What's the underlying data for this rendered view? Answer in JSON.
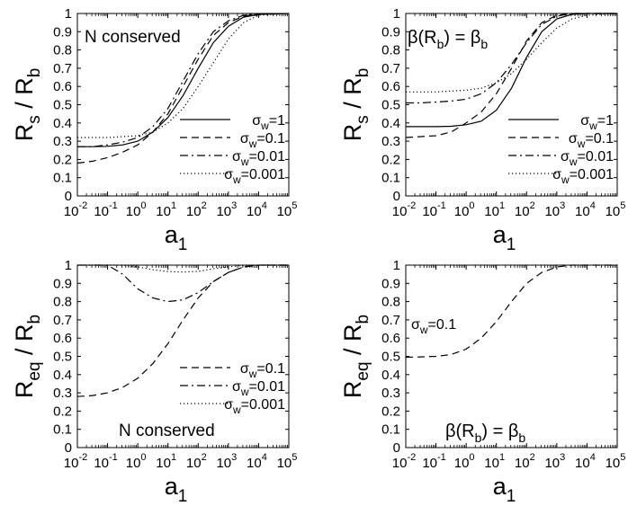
{
  "chart_data": [
    {
      "type": "line",
      "panel": "top-left",
      "title": "",
      "xlabel": "a",
      "xlabel_sub": "1",
      "ylabel": {
        "main": "R",
        "sub": "s",
        "rest": " / R",
        "sub2": "b"
      },
      "x_scale": "log10",
      "xlim_exp": [
        -2,
        5
      ],
      "ylim": [
        0,
        1
      ],
      "x_tick_labels": [
        "10",
        "10",
        "10",
        "10",
        "10",
        "10",
        "10",
        "10"
      ],
      "x_tick_exps": [
        "-2",
        "-1",
        "0",
        "1",
        "2",
        "3",
        "4",
        "5"
      ],
      "y_tick_labels": [
        "0",
        "0.1",
        "0.2",
        "0.3",
        "0.4",
        "0.5",
        "0.6",
        "0.7",
        "0.8",
        "0.9",
        "1"
      ],
      "annotation": {
        "text": "N conserved"
      },
      "legend": "bottom-right",
      "series": [
        {
          "name": "σw=1",
          "legend": {
            "sym": "σ",
            "sub": "w",
            "val": "=1"
          },
          "style": "solid",
          "x": [
            -2,
            -1.5,
            -1,
            -0.5,
            0,
            0.5,
            1,
            1.5,
            2,
            2.5,
            3,
            3.5,
            4,
            5
          ],
          "y": [
            0.27,
            0.27,
            0.272,
            0.28,
            0.3,
            0.35,
            0.43,
            0.55,
            0.7,
            0.84,
            0.93,
            0.98,
            0.995,
            1.0
          ]
        },
        {
          "name": "σw=0.1",
          "legend": {
            "sym": "σ",
            "sub": "w",
            "val": "=0.1"
          },
          "style": "dashed",
          "x": [
            -2,
            -1.5,
            -1,
            -0.5,
            0,
            0.5,
            1,
            1.5,
            2,
            2.5,
            3,
            3.5,
            4,
            5
          ],
          "y": [
            0.18,
            0.19,
            0.21,
            0.24,
            0.28,
            0.35,
            0.45,
            0.6,
            0.75,
            0.88,
            0.95,
            0.985,
            0.997,
            1.0
          ]
        },
        {
          "name": "σw=0.01",
          "legend": {
            "sym": "σ",
            "sub": "w",
            "val": "=0.01"
          },
          "style": "dashdot",
          "x": [
            -2,
            -1.5,
            -1,
            -0.5,
            0,
            0.5,
            1,
            1.5,
            2,
            2.5,
            3,
            3.5,
            4,
            5
          ],
          "y": [
            0.27,
            0.27,
            0.28,
            0.295,
            0.32,
            0.38,
            0.48,
            0.63,
            0.78,
            0.9,
            0.96,
            0.99,
            0.998,
            1.0
          ]
        },
        {
          "name": "σw=0.001",
          "legend": {
            "sym": "σ",
            "sub": "w",
            "val": "=0.001"
          },
          "style": "dotted",
          "x": [
            -2,
            -1.5,
            -1,
            -0.5,
            0,
            0.5,
            1,
            1.5,
            2,
            2.5,
            3,
            3.5,
            4,
            5
          ],
          "y": [
            0.32,
            0.32,
            0.32,
            0.325,
            0.33,
            0.35,
            0.4,
            0.48,
            0.6,
            0.73,
            0.86,
            0.95,
            0.99,
            1.0
          ]
        }
      ]
    },
    {
      "type": "line",
      "panel": "top-right",
      "title": "",
      "xlabel": "a",
      "xlabel_sub": "1",
      "ylabel": {
        "main": "R",
        "sub": "s",
        "rest": " / R",
        "sub2": "b"
      },
      "x_scale": "log10",
      "xlim_exp": [
        -2,
        5
      ],
      "ylim": [
        0,
        1
      ],
      "x_tick_labels": [
        "10",
        "10",
        "10",
        "10",
        "10",
        "10",
        "10",
        "10"
      ],
      "x_tick_exps": [
        "-2",
        "-1",
        "0",
        "1",
        "2",
        "3",
        "4",
        "5"
      ],
      "y_tick_labels": [
        "0",
        "0.1",
        "0.2",
        "0.3",
        "0.4",
        "0.5",
        "0.6",
        "0.7",
        "0.8",
        "0.9",
        "1"
      ],
      "annotation": {
        "beta_eq": true,
        "p1": "β(R",
        "p1sub": "b",
        "p2": ") = β",
        "p2sub": "b"
      },
      "legend": "bottom-right",
      "series": [
        {
          "name": "σw=1",
          "legend": {
            "sym": "σ",
            "sub": "w",
            "val": "=1"
          },
          "style": "solid",
          "x": [
            -2,
            -1.5,
            -1,
            -0.5,
            0,
            0.5,
            1,
            1.5,
            2,
            2.5,
            3,
            3.5,
            4,
            5
          ],
          "y": [
            0.38,
            0.38,
            0.38,
            0.382,
            0.39,
            0.41,
            0.47,
            0.59,
            0.76,
            0.9,
            0.97,
            0.995,
            1.0,
            1.0
          ]
        },
        {
          "name": "σw=0.1",
          "legend": {
            "sym": "σ",
            "sub": "w",
            "val": "=0.1"
          },
          "style": "dashed",
          "x": [
            -2,
            -1.5,
            -1,
            -0.5,
            0,
            0.5,
            1,
            1.5,
            2,
            2.5,
            3,
            3.5,
            4,
            5
          ],
          "y": [
            0.32,
            0.325,
            0.33,
            0.35,
            0.4,
            0.46,
            0.56,
            0.7,
            0.85,
            0.95,
            0.99,
            1.0,
            1.0,
            1.0
          ]
        },
        {
          "name": "σw=0.01",
          "legend": {
            "sym": "σ",
            "sub": "w",
            "val": "=0.01"
          },
          "style": "dashdot",
          "x": [
            -2,
            -1.5,
            -1,
            -0.5,
            0,
            0.5,
            1,
            1.5,
            2,
            2.5,
            3,
            3.5,
            4,
            5
          ],
          "y": [
            0.51,
            0.51,
            0.515,
            0.52,
            0.53,
            0.56,
            0.62,
            0.72,
            0.84,
            0.94,
            0.985,
            1.0,
            1.0,
            1.0
          ]
        },
        {
          "name": "σw=0.001",
          "legend": {
            "sym": "σ",
            "sub": "w",
            "val": "=0.001"
          },
          "style": "dotted",
          "x": [
            -2,
            -1.5,
            -1,
            -0.5,
            0,
            0.5,
            1,
            1.5,
            2,
            2.5,
            3,
            3.5,
            4,
            5
          ],
          "y": [
            0.57,
            0.57,
            0.57,
            0.575,
            0.58,
            0.59,
            0.62,
            0.67,
            0.75,
            0.84,
            0.92,
            0.97,
            0.99,
            1.0
          ]
        }
      ]
    },
    {
      "type": "line",
      "panel": "bottom-left",
      "title": "",
      "xlabel": "a",
      "xlabel_sub": "1",
      "ylabel": {
        "main": "R",
        "sub": "eq",
        "rest": " / R",
        "sub2": "b"
      },
      "x_scale": "log10",
      "xlim_exp": [
        -2,
        5
      ],
      "ylim": [
        0,
        1
      ],
      "x_tick_labels": [
        "10",
        "10",
        "10",
        "10",
        "10",
        "10",
        "10",
        "10"
      ],
      "x_tick_exps": [
        "-2",
        "-1",
        "0",
        "1",
        "2",
        "3",
        "4",
        "5"
      ],
      "y_tick_labels": [
        "0",
        "0.1",
        "0.2",
        "0.3",
        "0.4",
        "0.5",
        "0.6",
        "0.7",
        "0.8",
        "0.9",
        "1"
      ],
      "annotation": {
        "text": "N conserved"
      },
      "legend": "center-right",
      "series": [
        {
          "name": "σw=0.1",
          "legend": {
            "sym": "σ",
            "sub": "w",
            "val": "=0.1"
          },
          "style": "dashed",
          "x": [
            -2,
            -1.5,
            -1,
            -0.5,
            0,
            0.5,
            1,
            1.5,
            2,
            2.5,
            3,
            3.5,
            4,
            5
          ],
          "y": [
            0.28,
            0.285,
            0.3,
            0.33,
            0.38,
            0.46,
            0.57,
            0.7,
            0.82,
            0.91,
            0.96,
            0.99,
            1.0,
            1.0
          ]
        },
        {
          "name": "σw=0.01",
          "legend": {
            "sym": "σ",
            "sub": "w",
            "val": "=0.01"
          },
          "style": "dashdot",
          "x": [
            -2,
            -1.5,
            -1,
            -0.5,
            0,
            0.5,
            1,
            1.5,
            2,
            2.5,
            3,
            3.5,
            4,
            5
          ],
          "y": [
            1.0,
            1.0,
            1.0,
            0.95,
            0.87,
            0.82,
            0.8,
            0.81,
            0.85,
            0.91,
            0.96,
            0.99,
            1.0,
            1.0
          ]
        },
        {
          "name": "σw=0.001",
          "legend": {
            "sym": "σ",
            "sub": "w",
            "val": "=0.001"
          },
          "style": "dotted",
          "x": [
            -2,
            -1.5,
            -1,
            -0.5,
            0,
            0.5,
            1,
            1.5,
            2,
            2.5,
            3,
            3.5,
            4,
            5
          ],
          "y": [
            1.0,
            1.0,
            1.0,
            1.0,
            0.99,
            0.975,
            0.965,
            0.962,
            0.966,
            0.98,
            0.99,
            0.998,
            1.0,
            1.0
          ]
        }
      ]
    },
    {
      "type": "line",
      "panel": "bottom-right",
      "title": "",
      "xlabel": "a",
      "xlabel_sub": "1",
      "ylabel": {
        "main": "R",
        "sub": "eq",
        "rest": " / R",
        "sub2": "b"
      },
      "x_scale": "log10",
      "xlim_exp": [
        -2,
        5
      ],
      "ylim": [
        0,
        1
      ],
      "x_tick_labels": [
        "10",
        "10",
        "10",
        "10",
        "10",
        "10",
        "10",
        "10"
      ],
      "x_tick_exps": [
        "-2",
        "-1",
        "0",
        "1",
        "2",
        "3",
        "4",
        "5"
      ],
      "y_tick_labels": [
        "0",
        "0.1",
        "0.2",
        "0.3",
        "0.4",
        "0.5",
        "0.6",
        "0.7",
        "0.8",
        "0.9",
        "1"
      ],
      "annotation": {
        "beta_eq": true,
        "p1": "β(R",
        "p1sub": "b",
        "p2": ") = β",
        "p2sub": "b"
      },
      "legend": "inline-left",
      "series": [
        {
          "name": "σw=0.1",
          "legend": {
            "sym": "σ",
            "sub": "w",
            "val": "=0.1"
          },
          "style": "dashed",
          "x": [
            -2,
            -1.5,
            -1,
            -0.5,
            0,
            0.5,
            1,
            1.5,
            2,
            2.5,
            3,
            3.5,
            4,
            5
          ],
          "y": [
            0.495,
            0.497,
            0.5,
            0.51,
            0.54,
            0.6,
            0.69,
            0.8,
            0.9,
            0.96,
            0.99,
            1.0,
            1.0,
            1.0
          ]
        }
      ]
    }
  ]
}
